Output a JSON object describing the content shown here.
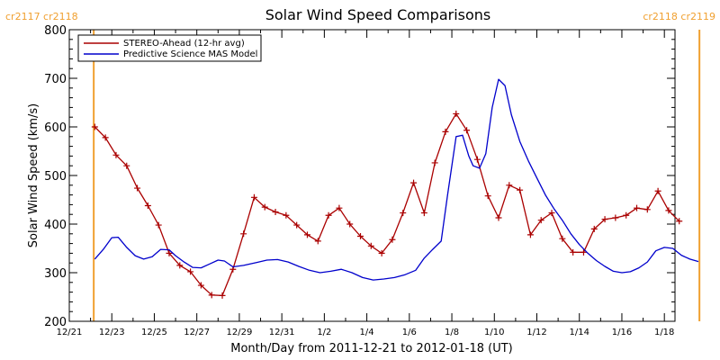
{
  "chart_data": {
    "type": "line",
    "title": "Solar Wind Speed Comparisons",
    "xlabel": "Month/Day from 2011-12-21 to 2012-01-18 (UT)",
    "ylabel": "Solar Wind Speed (km/s)",
    "ylim": [
      200,
      800
    ],
    "yticks": [
      200,
      300,
      400,
      500,
      600,
      700,
      800
    ],
    "xlim": [
      0,
      28.5
    ],
    "xticks": [
      {
        "day": 0,
        "label": "12/21"
      },
      {
        "day": 2,
        "label": "12/23"
      },
      {
        "day": 4,
        "label": "12/25"
      },
      {
        "day": 6,
        "label": "12/27"
      },
      {
        "day": 8,
        "label": "12/29"
      },
      {
        "day": 10,
        "label": "12/31"
      },
      {
        "day": 12,
        "label": "1/2"
      },
      {
        "day": 14,
        "label": "1/4"
      },
      {
        "day": 16,
        "label": "1/6"
      },
      {
        "day": 18,
        "label": "1/8"
      },
      {
        "day": 20,
        "label": "1/10"
      },
      {
        "day": 22,
        "label": "1/12"
      },
      {
        "day": 24,
        "label": "1/14"
      },
      {
        "day": 26,
        "label": "1/16"
      },
      {
        "day": 28,
        "label": "1/18"
      }
    ],
    "grid": false,
    "legend_position": "top-left",
    "carrington_markers": [
      {
        "day": 1.15,
        "labels": [
          "cr2117",
          "cr2118"
        ],
        "color": "#f0a030"
      },
      {
        "day": 29.65,
        "labels": [
          "cr2118",
          "cr2119"
        ],
        "color": "#f0a030"
      }
    ],
    "series": [
      {
        "name": "STEREO-Ahead (12-hr avg)",
        "color": "#aa0000",
        "marker": "plus",
        "points": [
          [
            1.2,
            600
          ],
          [
            1.7,
            578
          ],
          [
            2.2,
            542
          ],
          [
            2.7,
            520
          ],
          [
            3.2,
            474
          ],
          [
            3.7,
            438
          ],
          [
            4.2,
            398
          ],
          [
            4.7,
            340
          ],
          [
            5.2,
            315
          ],
          [
            5.7,
            302
          ],
          [
            6.2,
            274
          ],
          [
            6.7,
            254
          ],
          [
            7.2,
            253
          ],
          [
            7.7,
            307
          ],
          [
            8.2,
            380
          ],
          [
            8.7,
            455
          ],
          [
            9.2,
            435
          ],
          [
            9.7,
            425
          ],
          [
            10.2,
            418
          ],
          [
            10.7,
            398
          ],
          [
            11.2,
            378
          ],
          [
            11.7,
            365
          ],
          [
            12.2,
            418
          ],
          [
            12.7,
            433
          ],
          [
            13.2,
            400
          ],
          [
            13.7,
            375
          ],
          [
            14.2,
            355
          ],
          [
            14.7,
            340
          ],
          [
            15.2,
            368
          ],
          [
            15.7,
            423
          ],
          [
            16.2,
            485
          ],
          [
            16.7,
            423
          ],
          [
            17.2,
            526
          ],
          [
            17.7,
            590
          ],
          [
            18.2,
            627
          ],
          [
            18.7,
            593
          ],
          [
            19.2,
            533
          ],
          [
            19.7,
            458
          ],
          [
            20.2,
            413
          ],
          [
            20.7,
            480
          ],
          [
            21.2,
            470
          ],
          [
            21.7,
            378
          ],
          [
            22.2,
            408
          ],
          [
            22.7,
            423
          ],
          [
            23.2,
            370
          ],
          [
            23.7,
            342
          ],
          [
            24.2,
            342
          ],
          [
            24.7,
            390
          ],
          [
            25.2,
            410
          ],
          [
            25.7,
            413
          ],
          [
            26.2,
            418
          ],
          [
            26.7,
            433
          ],
          [
            27.2,
            430
          ],
          [
            27.7,
            468
          ],
          [
            28.2,
            428
          ],
          [
            28.7,
            406
          ]
        ]
      },
      {
        "name": "Predictive Science MAS Model",
        "color": "#0000cc",
        "marker": "none",
        "points": [
          [
            1.2,
            328
          ],
          [
            1.6,
            348
          ],
          [
            2.0,
            372
          ],
          [
            2.3,
            373
          ],
          [
            2.7,
            352
          ],
          [
            3.1,
            335
          ],
          [
            3.5,
            328
          ],
          [
            3.9,
            333
          ],
          [
            4.3,
            348
          ],
          [
            4.7,
            347
          ],
          [
            5.0,
            335
          ],
          [
            5.4,
            322
          ],
          [
            5.8,
            311
          ],
          [
            6.2,
            310
          ],
          [
            6.6,
            318
          ],
          [
            7.0,
            326
          ],
          [
            7.3,
            324
          ],
          [
            7.7,
            312
          ],
          [
            8.2,
            315
          ],
          [
            8.8,
            321
          ],
          [
            9.3,
            326
          ],
          [
            9.8,
            327
          ],
          [
            10.3,
            322
          ],
          [
            10.8,
            313
          ],
          [
            11.3,
            305
          ],
          [
            11.8,
            300
          ],
          [
            12.3,
            303
          ],
          [
            12.8,
            307
          ],
          [
            13.3,
            300
          ],
          [
            13.8,
            290
          ],
          [
            14.3,
            285
          ],
          [
            14.8,
            287
          ],
          [
            15.3,
            290
          ],
          [
            15.8,
            296
          ],
          [
            16.3,
            305
          ],
          [
            16.7,
            330
          ],
          [
            17.1,
            348
          ],
          [
            17.5,
            365
          ],
          [
            17.8,
            460
          ],
          [
            18.2,
            580
          ],
          [
            18.5,
            583
          ],
          [
            18.8,
            540
          ],
          [
            19.0,
            520
          ],
          [
            19.3,
            515
          ],
          [
            19.6,
            545
          ],
          [
            19.9,
            640
          ],
          [
            20.2,
            698
          ],
          [
            20.5,
            685
          ],
          [
            20.8,
            625
          ],
          [
            21.2,
            570
          ],
          [
            21.6,
            530
          ],
          [
            22.0,
            495
          ],
          [
            22.4,
            460
          ],
          [
            22.8,
            432
          ],
          [
            23.2,
            408
          ],
          [
            23.6,
            380
          ],
          [
            24.0,
            358
          ],
          [
            24.4,
            340
          ],
          [
            24.8,
            325
          ],
          [
            25.2,
            313
          ],
          [
            25.6,
            303
          ],
          [
            26.0,
            300
          ],
          [
            26.4,
            302
          ],
          [
            26.8,
            310
          ],
          [
            27.2,
            322
          ],
          [
            27.6,
            345
          ],
          [
            28.0,
            352
          ],
          [
            28.4,
            350
          ],
          [
            28.8,
            336
          ],
          [
            29.2,
            328
          ],
          [
            29.6,
            323
          ]
        ]
      }
    ]
  }
}
